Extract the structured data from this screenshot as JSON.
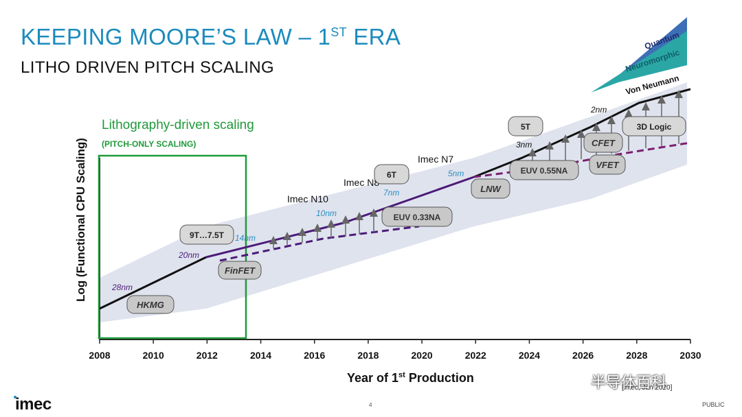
{
  "slide": {
    "title": "KEEPING MOORE’S LAW – 1",
    "title_sup": "ST",
    "title_tail": " ERA",
    "subtitle": "LITHO DRIVEN PITCH SCALING",
    "logo": "imec",
    "page_number": "4",
    "classification": "PUBLIC",
    "source": "[imec, Jan 2020]",
    "watermark": "半导体百科"
  },
  "chart_data": {
    "type": "line",
    "xlabel": "Year of 1st Production",
    "ylabel": "Log (Functional CPU Scaling)",
    "x_ticks": [
      2008,
      2010,
      2012,
      2014,
      2016,
      2018,
      2020,
      2022,
      2024,
      2026,
      2028,
      2030
    ],
    "xlim": [
      2008,
      2030
    ],
    "log_scale_y": true,
    "grid": false,
    "series": [
      {
        "name": "",
        "style": "solid",
        "color": "#111111",
        "x": [
          2008,
          2012
        ],
        "y": [
          0.0,
          0.23
        ]
      },
      {
        "name": "",
        "style": "solid",
        "color": "#4b1a78",
        "x": [
          2012,
          2022
        ],
        "y": [
          0.23,
          0.52
        ]
      },
      {
        "name": "Von Neumann",
        "style": "solid",
        "color": "#111111",
        "x": [
          2022,
          2024,
          2026,
          2028,
          2030
        ],
        "y": [
          0.52,
          0.62,
          0.75,
          0.85,
          0.92
        ]
      },
      {
        "name": "",
        "style": "dashed",
        "color": "#4b1a78",
        "x": [
          2012.5,
          2020
        ],
        "y": [
          0.2,
          0.39
        ]
      },
      {
        "name": "",
        "style": "dashed",
        "color": "#7a1f6e",
        "x": [
          2022,
          2030
        ],
        "y": [
          0.52,
          0.69
        ]
      }
    ],
    "highlight_box": {
      "x": [
        2008,
        2013.5
      ],
      "title": "Lithography-driven scaling",
      "subtitle": "(PITCH-ONLY SCALING)"
    },
    "band_labels": [
      "Quantum",
      "Neuromorphic",
      "Von Neumann"
    ],
    "node_labels": [
      {
        "text": "Imec N10",
        "x": 2016
      },
      {
        "text": "Imec N8",
        "x": 2018
      },
      {
        "text": "Imec N7",
        "x": 2020.7
      }
    ],
    "pitch_labels": [
      {
        "text": "28nm",
        "x": 2008.9,
        "color": "#4b1a78"
      },
      {
        "text": "20nm",
        "x": 2011.5,
        "color": "#4b1a78"
      },
      {
        "text": "14nm",
        "x": 2013.2,
        "color": "#2a8fc0"
      },
      {
        "text": "10nm",
        "x": 2016.5,
        "color": "#2a8fc0"
      },
      {
        "text": "7nm",
        "x": 2018.6,
        "color": "#2a8fc0"
      },
      {
        "text": "5nm",
        "x": 2021.3,
        "color": "#2a8fc0"
      },
      {
        "text": "3nm",
        "x": 2024.0,
        "color": "#111111"
      },
      {
        "text": "2nm",
        "x": 2026.3,
        "color": "#111111"
      }
    ],
    "tech_boxes": [
      "HKMG",
      "9T…7.5T",
      "FinFET",
      "6T",
      "EUV 0.33NA",
      "LNW",
      "5T",
      "EUV 0.55NA",
      "CFET",
      "VFET",
      "3D Logic"
    ]
  }
}
